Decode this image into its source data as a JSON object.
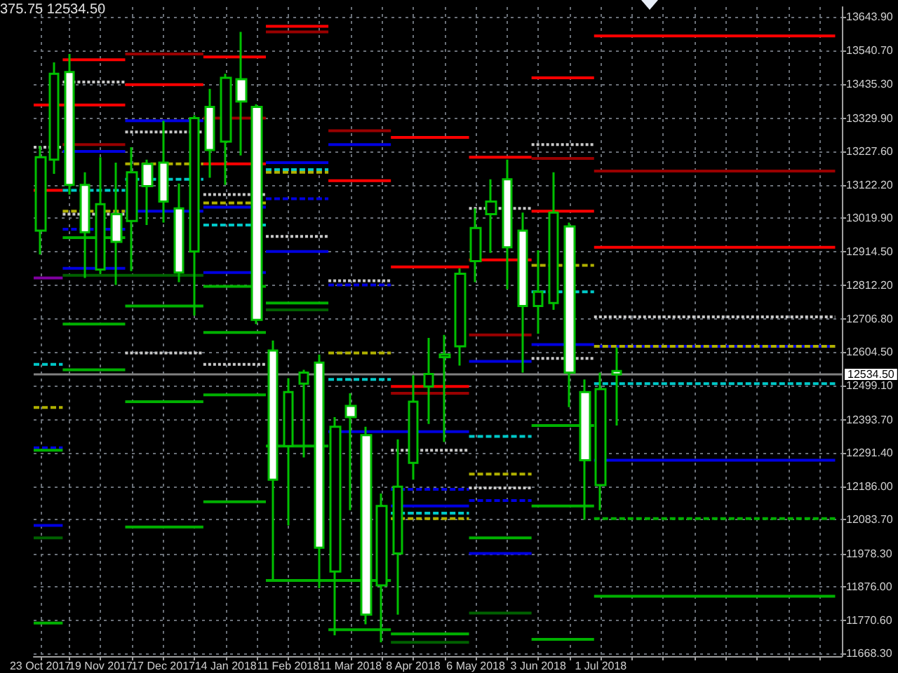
{
  "chart_data": {
    "type": "candlestick",
    "color": "#00c000",
    "grid": true,
    "marker": "none",
    "annotations": [
      "375.75 12534.50"
    ],
    "xlim": [
      "2017-10-20",
      "2018-10-17"
    ],
    "xticks": [
      {
        "value": "2017-10-23",
        "label": "23 Oct 2017"
      },
      {
        "value": "2017-11-05",
        "label": null
      },
      {
        "value": "2017-11-19",
        "label": "19 Nov 2017"
      },
      {
        "value": "2017-12-03",
        "label": null
      },
      {
        "value": "2017-12-17",
        "label": "17 Dec 2017"
      },
      {
        "value": "2017-12-31",
        "label": null
      },
      {
        "value": "2018-01-14",
        "label": "14 Jan 2018"
      },
      {
        "value": "2018-01-28",
        "label": null
      },
      {
        "value": "2018-02-11",
        "label": "11 Feb 2018"
      },
      {
        "value": "2018-02-25",
        "label": null
      },
      {
        "value": "2018-03-11",
        "label": "11 Mar 2018"
      },
      {
        "value": "2018-03-25",
        "label": null
      },
      {
        "value": "2018-04-08",
        "label": "8 Apr 2018"
      },
      {
        "value": "2018-04-22",
        "label": null
      },
      {
        "value": "2018-05-06",
        "label": "6 May 2018"
      },
      {
        "value": "2018-05-20",
        "label": null
      },
      {
        "value": "2018-06-03",
        "label": "3 Jun 2018"
      },
      {
        "value": "2018-06-17",
        "label": null
      },
      {
        "value": "2018-07-01",
        "label": "1 Jul 2018"
      },
      {
        "value": "2018-07-15",
        "label": null
      },
      {
        "value": "2018-07-29",
        "label": null
      },
      {
        "value": "2018-08-12",
        "label": null
      },
      {
        "value": "2018-08-26",
        "label": null
      },
      {
        "value": "2018-09-09",
        "label": null
      },
      {
        "value": "2018-09-23",
        "label": null
      },
      {
        "value": "2018-10-07",
        "label": null
      }
    ],
    "ylim": [
      11660,
      13675
    ],
    "yticks": [
      {
        "value": 13643.9,
        "label": "13643.90"
      },
      {
        "value": 13540.7,
        "label": "13540.70"
      },
      {
        "value": 13435.3,
        "label": "13435.30"
      },
      {
        "value": 13329.9,
        "label": "13329.90"
      },
      {
        "value": 13227.6,
        "label": "13227.60"
      },
      {
        "value": 13122.2,
        "label": "13122.20"
      },
      {
        "value": 13019.9,
        "label": "13019.90"
      },
      {
        "value": 12914.5,
        "label": "12914.50"
      },
      {
        "value": 12812.2,
        "label": "12812.20"
      },
      {
        "value": 12706.8,
        "label": "12706.80"
      },
      {
        "value": 12604.5,
        "label": "12604.50"
      },
      {
        "value": 12499.1,
        "label": "12499.10"
      },
      {
        "value": 12393.7,
        "label": "12393.70"
      },
      {
        "value": 12291.4,
        "label": "12291.40"
      },
      {
        "value": 12186,
        "label": "12186.00"
      },
      {
        "value": 12083.7,
        "label": "12083.70"
      },
      {
        "value": 11978.3,
        "label": "11978.30"
      },
      {
        "value": 11876,
        "label": "11876.00"
      },
      {
        "value": 11770.6,
        "label": "11770.60"
      },
      {
        "value": 11668.3,
        "label": "11668.30"
      }
    ],
    "ref_lines": [
      {
        "axis": "y",
        "value": 12534.5,
        "label": "12534.50",
        "color": "#808080"
      }
    ],
    "x": [
      "2017-10-23",
      "2017-10-29",
      "2017-11-05",
      "2017-11-12",
      "2017-11-19",
      "2017-11-26",
      "2017-12-03",
      "2017-12-10",
      "2017-12-17",
      "2017-12-24",
      "2017-12-31",
      "2018-01-07",
      "2018-01-14",
      "2018-01-21",
      "2018-01-28",
      "2018-02-04",
      "2018-02-11",
      "2018-02-18",
      "2018-02-25",
      "2018-03-04",
      "2018-03-11",
      "2018-03-18",
      "2018-03-25",
      "2018-04-01",
      "2018-04-08",
      "2018-04-15",
      "2018-04-22",
      "2018-04-29",
      "2018-05-06",
      "2018-05-13",
      "2018-05-20",
      "2018-05-27",
      "2018-06-03",
      "2018-06-10",
      "2018-06-17",
      "2018-06-24",
      "2018-07-01",
      "2018-07-08"
    ],
    "ohlc": [
      [
        12981,
        13244,
        12907,
        13209
      ],
      [
        13201,
        13503,
        13157,
        13468
      ],
      [
        13473,
        13529,
        13093,
        13123
      ],
      [
        13123,
        13162,
        12834,
        12976
      ],
      [
        12860,
        13209,
        12847,
        13063
      ],
      [
        13032,
        13192,
        12812,
        12946
      ],
      [
        13011,
        13240,
        12855,
        13162
      ],
      [
        13188,
        13201,
        12998,
        13119
      ],
      [
        13192,
        13322,
        13006,
        13071
      ],
      [
        13050,
        13127,
        12821,
        12851
      ],
      [
        12916,
        13339,
        12717,
        13330
      ],
      [
        13365,
        13421,
        13145,
        13231
      ],
      [
        13257,
        13468,
        13123,
        13455
      ],
      [
        13451,
        13598,
        13214,
        13382
      ],
      [
        13365,
        13373,
        12691,
        12704
      ],
      [
        12609,
        12640,
        11897,
        12208
      ],
      [
        12312,
        12523,
        12066,
        12480
      ],
      [
        12506,
        12549,
        12277,
        12540
      ],
      [
        12571,
        12596,
        11871,
        11997
      ],
      [
        11923,
        12402,
        11725,
        12372
      ],
      [
        12437,
        12476,
        12113,
        12402
      ],
      [
        12346,
        12372,
        11759,
        11789
      ],
      [
        11880,
        12165,
        11703,
        12126
      ],
      [
        11979,
        12333,
        11789,
        12186
      ],
      [
        12260,
        12532,
        12208,
        12450
      ],
      [
        12497,
        12648,
        12381,
        12536
      ],
      [
        12588,
        12657,
        12325,
        12596
      ],
      [
        12622,
        12864,
        12562,
        12847
      ],
      [
        12886,
        13050,
        12821,
        12989
      ],
      [
        13032,
        13140,
        12912,
        13071
      ],
      [
        13140,
        13201,
        12799,
        12929
      ],
      [
        12981,
        13037,
        12540,
        12747
      ],
      [
        12747,
        12920,
        12661,
        12791
      ],
      [
        12756,
        13162,
        12735,
        13037
      ],
      [
        12994,
        13006,
        12433,
        12540
      ],
      [
        12480,
        12519,
        12083,
        12268
      ],
      [
        12191,
        12540,
        12113,
        12489
      ],
      [
        12545,
        12618,
        12375.75,
        12534.5
      ]
    ],
    "colors": [
      "#000000",
      "#000000",
      "#ffffff",
      "#ffffff",
      "#000000",
      "#ffffff",
      "#000000",
      "#ffffff",
      "#ffffff",
      "#ffffff",
      "#000000",
      "#ffffff",
      "#000000",
      "#ffffff",
      "#ffffff",
      "#ffffff",
      "#000000",
      "#000000",
      "#ffffff",
      "#000000",
      "#ffffff",
      "#ffffff",
      "#000000",
      "#000000",
      "#000000",
      "#000000",
      "#000000",
      "#000000",
      "#000000",
      "#000000",
      "#ffffff",
      "#ffffff",
      "#000000",
      "#000000",
      "#ffffff",
      "#ffffff",
      "#000000",
      "#ffffff"
    ],
    "series": [
      {
        "type": "line",
        "color": "#ff0000",
        "line_style": "solid",
        "x": [
          "2017-10-20",
          "2017-11-30"
        ],
        "values": [
          13371,
          13371
        ]
      },
      {
        "type": "line",
        "color": "#c8c8c8",
        "line_style": "dotted",
        "x": [
          "2017-10-20",
          "2017-11-02"
        ],
        "values": [
          13240,
          13240
        ]
      },
      {
        "type": "line",
        "color": "#ff0000",
        "line_style": "solid",
        "x": [
          "2017-10-20",
          "2017-11-02"
        ],
        "values": [
          13106,
          13106
        ]
      },
      {
        "type": "line",
        "color": "#8000a0",
        "line_style": "solid",
        "x": [
          "2017-10-20",
          "2017-11-02"
        ],
        "values": [
          12834,
          12834
        ]
      },
      {
        "type": "line",
        "color": "#00c8c8",
        "line_style": "dashed",
        "x": [
          "2017-10-20",
          "2017-11-02"
        ],
        "values": [
          12566,
          12566
        ]
      },
      {
        "type": "line",
        "color": "#b0b000",
        "line_style": "dashed",
        "x": [
          "2017-10-20",
          "2017-11-02"
        ],
        "values": [
          12432,
          12432
        ]
      },
      {
        "type": "line",
        "color": "#0000e0",
        "line_style": "dashed",
        "x": [
          "2017-10-20",
          "2017-11-02"
        ],
        "values": [
          12307,
          12307
        ]
      },
      {
        "type": "line",
        "color": "#00b000",
        "line_style": "solid",
        "x": [
          "2017-10-20",
          "2017-11-02"
        ],
        "values": [
          12299,
          12299
        ]
      },
      {
        "type": "line",
        "color": "#0000e0",
        "line_style": "solid",
        "x": [
          "2017-10-20",
          "2017-11-02"
        ],
        "values": [
          12066,
          12066
        ]
      },
      {
        "type": "line",
        "color": "#006000",
        "line_style": "solid",
        "x": [
          "2017-10-20",
          "2017-11-02"
        ],
        "values": [
          12027,
          12027
        ]
      },
      {
        "type": "line",
        "color": "#00b000",
        "line_style": "solid",
        "x": [
          "2017-10-20",
          "2017-11-02"
        ],
        "values": [
          11763,
          11763
        ]
      },
      {
        "type": "line",
        "color": "#ff0000",
        "line_style": "solid",
        "x": [
          "2017-11-02",
          "2017-11-30"
        ],
        "values": [
          13511,
          13511
        ]
      },
      {
        "type": "line",
        "color": "#c8c8c8",
        "line_style": "dotted",
        "x": [
          "2017-11-02",
          "2017-11-30"
        ],
        "values": [
          13442,
          13442
        ]
      },
      {
        "type": "line",
        "color": "#990000",
        "line_style": "solid",
        "x": [
          "2017-11-02",
          "2017-11-30"
        ],
        "values": [
          13248,
          13248
        ]
      },
      {
        "type": "line",
        "color": "#0000e0",
        "line_style": "solid",
        "x": [
          "2017-11-02",
          "2017-11-30"
        ],
        "values": [
          13227,
          13227
        ]
      },
      {
        "type": "line",
        "color": "#00c8c8",
        "line_style": "dashed",
        "x": [
          "2017-11-02",
          "2017-11-30"
        ],
        "values": [
          13106,
          13106
        ]
      },
      {
        "type": "line",
        "color": "#b0b000",
        "line_style": "dashed",
        "x": [
          "2017-11-02",
          "2017-11-30"
        ],
        "values": [
          13041,
          13041
        ]
      },
      {
        "type": "line",
        "color": "#c8c8c8",
        "line_style": "dotted",
        "x": [
          "2017-11-02",
          "2017-11-30"
        ],
        "values": [
          13032,
          13032
        ]
      },
      {
        "type": "line",
        "color": "#0000e0",
        "line_style": "dashed",
        "x": [
          "2017-11-02",
          "2017-11-30"
        ],
        "values": [
          12985,
          12985
        ]
      },
      {
        "type": "line",
        "color": "#00b000",
        "line_style": "solid",
        "x": [
          "2017-11-02",
          "2017-11-30"
        ],
        "values": [
          12959,
          12959
        ]
      },
      {
        "type": "line",
        "color": "#0000e0",
        "line_style": "solid",
        "x": [
          "2017-11-02",
          "2017-11-30"
        ],
        "values": [
          12864,
          12864
        ]
      },
      {
        "type": "line",
        "color": "#006000",
        "line_style": "solid",
        "x": [
          "2017-11-02",
          "2018-01-04"
        ],
        "values": [
          12842,
          12842
        ]
      },
      {
        "type": "line",
        "color": "#00b000",
        "line_style": "solid",
        "x": [
          "2017-11-02",
          "2017-11-30"
        ],
        "values": [
          12691,
          12691
        ]
      },
      {
        "type": "line",
        "color": "#00b000",
        "line_style": "solid",
        "x": [
          "2017-11-02",
          "2017-11-30"
        ],
        "values": [
          12549,
          12549
        ]
      },
      {
        "type": "line",
        "color": "#990000",
        "line_style": "solid",
        "x": [
          "2017-11-30",
          "2018-01-04"
        ],
        "values": [
          13529,
          13529
        ]
      },
      {
        "type": "line",
        "color": "#ff0000",
        "line_style": "solid",
        "x": [
          "2017-11-30",
          "2018-01-04"
        ],
        "values": [
          13434,
          13434
        ]
      },
      {
        "type": "line",
        "color": "#0000e0",
        "line_style": "solid",
        "x": [
          "2017-11-30",
          "2018-01-04"
        ],
        "values": [
          13322,
          13322
        ]
      },
      {
        "type": "line",
        "color": "#c8c8c8",
        "line_style": "dotted",
        "x": [
          "2017-11-30",
          "2018-01-04"
        ],
        "values": [
          13287,
          13287
        ]
      },
      {
        "type": "line",
        "color": "#b0b000",
        "line_style": "dashed",
        "x": [
          "2017-11-30",
          "2018-01-04"
        ],
        "values": [
          13188,
          13188
        ]
      },
      {
        "type": "line",
        "color": "#00c8c8",
        "line_style": "dashed",
        "x": [
          "2017-11-30",
          "2018-01-04"
        ],
        "values": [
          13140,
          13140
        ]
      },
      {
        "type": "line",
        "color": "#0000e0",
        "line_style": "solid",
        "x": [
          "2017-11-30",
          "2018-01-04"
        ],
        "values": [
          13041,
          13041
        ]
      },
      {
        "type": "line",
        "color": "#00b000",
        "line_style": "solid",
        "x": [
          "2017-11-30",
          "2018-01-04"
        ],
        "values": [
          12747,
          12747
        ]
      },
      {
        "type": "line",
        "color": "#c8c8c8",
        "line_style": "dotted",
        "x": [
          "2017-11-30",
          "2018-01-04"
        ],
        "values": [
          12601,
          12601
        ]
      },
      {
        "type": "line",
        "color": "#00b000",
        "line_style": "solid",
        "x": [
          "2017-11-30",
          "2018-01-04"
        ],
        "values": [
          12450,
          12450
        ]
      },
      {
        "type": "line",
        "color": "#00b000",
        "line_style": "solid",
        "x": [
          "2017-11-30",
          "2018-01-04"
        ],
        "values": [
          12061,
          12061
        ]
      },
      {
        "type": "line",
        "color": "#ff0000",
        "line_style": "solid",
        "x": [
          "2018-01-04",
          "2018-02-01"
        ],
        "values": [
          13520,
          13520
        ]
      },
      {
        "type": "line",
        "color": "#990000",
        "line_style": "solid",
        "x": [
          "2018-01-04",
          "2018-02-01"
        ],
        "values": [
          13330,
          13330
        ]
      },
      {
        "type": "line",
        "color": "#ff0000",
        "line_style": "solid",
        "x": [
          "2018-01-04",
          "2018-02-01"
        ],
        "values": [
          13188,
          13188
        ]
      },
      {
        "type": "line",
        "color": "#c8c8c8",
        "line_style": "dotted",
        "x": [
          "2018-01-04",
          "2018-02-01"
        ],
        "values": [
          13093,
          13093
        ]
      },
      {
        "type": "line",
        "color": "#b0b000",
        "line_style": "dashed",
        "x": [
          "2018-01-04",
          "2018-02-01"
        ],
        "values": [
          13067,
          13067
        ]
      },
      {
        "type": "line",
        "color": "#0000e0",
        "line_style": "solid",
        "x": [
          "2018-01-04",
          "2018-02-01"
        ],
        "values": [
          13054,
          13054
        ]
      },
      {
        "type": "line",
        "color": "#00c8c8",
        "line_style": "dashed",
        "x": [
          "2018-01-04",
          "2018-02-01"
        ],
        "values": [
          12998,
          12998
        ]
      },
      {
        "type": "line",
        "color": "#0000e0",
        "line_style": "solid",
        "x": [
          "2018-01-04",
          "2018-02-01"
        ],
        "values": [
          12851,
          12851
        ]
      },
      {
        "type": "line",
        "color": "#00b000",
        "line_style": "solid",
        "x": [
          "2018-01-04",
          "2018-02-01"
        ],
        "values": [
          12808,
          12808
        ]
      },
      {
        "type": "line",
        "color": "#00b000",
        "line_style": "solid",
        "x": [
          "2018-01-04",
          "2018-02-01"
        ],
        "values": [
          12665,
          12665
        ]
      },
      {
        "type": "line",
        "color": "#c8c8c8",
        "line_style": "dotted",
        "x": [
          "2018-01-04",
          "2018-02-01"
        ],
        "values": [
          12566,
          12566
        ]
      },
      {
        "type": "line",
        "color": "#00b000",
        "line_style": "solid",
        "x": [
          "2018-01-04",
          "2018-02-01"
        ],
        "values": [
          12471,
          12471
        ]
      },
      {
        "type": "line",
        "color": "#00b000",
        "line_style": "solid",
        "x": [
          "2018-01-04",
          "2018-02-01"
        ],
        "values": [
          12139,
          12139
        ]
      },
      {
        "type": "line",
        "color": "#ff0000",
        "line_style": "solid",
        "x": [
          "2018-02-01",
          "2018-03-01"
        ],
        "values": [
          13615,
          13615
        ]
      },
      {
        "type": "line",
        "color": "#990000",
        "line_style": "solid",
        "x": [
          "2018-02-01",
          "2018-03-01"
        ],
        "values": [
          13598,
          13598
        ]
      },
      {
        "type": "line",
        "color": "#0000e0",
        "line_style": "solid",
        "x": [
          "2018-02-01",
          "2018-03-01"
        ],
        "values": [
          13192,
          13192
        ]
      },
      {
        "type": "line",
        "color": "#00c8c8",
        "line_style": "dashed",
        "x": [
          "2018-02-01",
          "2018-03-01"
        ],
        "values": [
          13170,
          13170
        ]
      },
      {
        "type": "line",
        "color": "#b0b000",
        "line_style": "dashed",
        "x": [
          "2018-02-01",
          "2018-03-01"
        ],
        "values": [
          13162,
          13162
        ]
      },
      {
        "type": "line",
        "color": "#0000e0",
        "line_style": "dashed",
        "x": [
          "2018-02-01",
          "2018-03-01"
        ],
        "values": [
          13080,
          13080
        ]
      },
      {
        "type": "line",
        "color": "#c8c8c8",
        "line_style": "dotted",
        "x": [
          "2018-02-01",
          "2018-03-01"
        ],
        "values": [
          12963,
          12963
        ]
      },
      {
        "type": "line",
        "color": "#0000e0",
        "line_style": "solid",
        "x": [
          "2018-02-01",
          "2018-03-01"
        ],
        "values": [
          12916,
          12916
        ]
      },
      {
        "type": "line",
        "color": "#00b000",
        "line_style": "solid",
        "x": [
          "2018-02-01",
          "2018-03-01"
        ],
        "values": [
          12756,
          12756
        ]
      },
      {
        "type": "line",
        "color": "#006000",
        "line_style": "solid",
        "x": [
          "2018-02-01",
          "2018-03-01"
        ],
        "values": [
          12735,
          12735
        ]
      },
      {
        "type": "line",
        "color": "#00b000",
        "line_style": "solid",
        "x": [
          "2018-02-01",
          "2018-03-01"
        ],
        "values": [
          12312,
          12312
        ]
      },
      {
        "type": "line",
        "color": "#00b000",
        "line_style": "solid",
        "x": [
          "2018-02-01",
          "2018-03-29"
        ],
        "values": [
          11895,
          11895
        ]
      },
      {
        "type": "line",
        "color": "#990000",
        "line_style": "solid",
        "x": [
          "2018-03-01",
          "2018-03-29"
        ],
        "values": [
          13291,
          13291
        ]
      },
      {
        "type": "line",
        "color": "#0000e0",
        "line_style": "solid",
        "x": [
          "2018-03-01",
          "2018-03-29"
        ],
        "values": [
          13248,
          13248
        ]
      },
      {
        "type": "line",
        "color": "#ff0000",
        "line_style": "solid",
        "x": [
          "2018-03-01",
          "2018-03-29"
        ],
        "values": [
          13136,
          13136
        ]
      },
      {
        "type": "line",
        "color": "#c8c8c8",
        "line_style": "dotted",
        "x": [
          "2018-03-01",
          "2018-03-29"
        ],
        "values": [
          12825,
          12825
        ]
      },
      {
        "type": "line",
        "color": "#0000e0",
        "line_style": "dashed",
        "x": [
          "2018-03-01",
          "2018-03-29"
        ],
        "values": [
          12812,
          12812
        ]
      },
      {
        "type": "line",
        "color": "#b0b000",
        "line_style": "dashed",
        "x": [
          "2018-03-01",
          "2018-03-29"
        ],
        "values": [
          12601,
          12601
        ]
      },
      {
        "type": "line",
        "color": "#00c8c8",
        "line_style": "dashed",
        "x": [
          "2018-03-01",
          "2018-03-29"
        ],
        "values": [
          12519,
          12519
        ]
      },
      {
        "type": "line",
        "color": "#0000e0",
        "line_style": "solid",
        "x": [
          "2018-03-01",
          "2018-05-03"
        ],
        "values": [
          12357,
          12357
        ]
      },
      {
        "type": "line",
        "color": "#00b000",
        "line_style": "solid",
        "x": [
          "2018-03-01",
          "2018-03-29"
        ],
        "values": [
          11742,
          11742
        ]
      },
      {
        "type": "line",
        "color": "#ff0000",
        "line_style": "solid",
        "x": [
          "2018-03-29",
          "2018-05-03"
        ],
        "values": [
          13270,
          13270
        ]
      },
      {
        "type": "line",
        "color": "#ff0000",
        "line_style": "solid",
        "x": [
          "2018-03-29",
          "2018-05-03"
        ],
        "values": [
          12868,
          12868
        ]
      },
      {
        "type": "line",
        "color": "#ff0000",
        "line_style": "solid",
        "x": [
          "2018-03-29",
          "2018-05-03"
        ],
        "values": [
          12497,
          12497
        ]
      },
      {
        "type": "line",
        "color": "#990000",
        "line_style": "solid",
        "x": [
          "2018-03-29",
          "2018-05-03"
        ],
        "values": [
          12476,
          12476
        ]
      },
      {
        "type": "line",
        "color": "#c8c8c8",
        "line_style": "dotted",
        "x": [
          "2018-03-29",
          "2018-05-03"
        ],
        "values": [
          12299,
          12299
        ]
      },
      {
        "type": "line",
        "color": "#0000e0",
        "line_style": "dashed",
        "x": [
          "2018-03-29",
          "2018-05-03"
        ],
        "values": [
          12178,
          12178
        ]
      },
      {
        "type": "line",
        "color": "#0000e0",
        "line_style": "solid",
        "x": [
          "2018-03-29",
          "2018-05-03"
        ],
        "values": [
          12126,
          12126
        ]
      },
      {
        "type": "line",
        "color": "#00c8c8",
        "line_style": "dashed",
        "x": [
          "2018-03-29",
          "2018-05-03"
        ],
        "values": [
          12104,
          12104
        ]
      },
      {
        "type": "line",
        "color": "#b0b000",
        "line_style": "dashed",
        "x": [
          "2018-03-29",
          "2018-05-03"
        ],
        "values": [
          12087,
          12087
        ]
      },
      {
        "type": "line",
        "color": "#00b000",
        "line_style": "solid",
        "x": [
          "2018-03-29",
          "2018-05-03"
        ],
        "values": [
          11729,
          11729
        ]
      },
      {
        "type": "line",
        "color": "#006000",
        "line_style": "solid",
        "x": [
          "2018-03-29",
          "2018-05-03"
        ],
        "values": [
          11703,
          11703
        ]
      },
      {
        "type": "line",
        "color": "#ff0000",
        "line_style": "solid",
        "x": [
          "2018-05-03",
          "2018-05-31"
        ],
        "values": [
          13209,
          13209
        ]
      },
      {
        "type": "line",
        "color": "#c8c8c8",
        "line_style": "dotted",
        "x": [
          "2018-05-03",
          "2018-05-31"
        ],
        "values": [
          13050,
          13050
        ]
      },
      {
        "type": "line",
        "color": "#ff0000",
        "line_style": "solid",
        "x": [
          "2018-05-03",
          "2018-05-31"
        ],
        "values": [
          12890,
          12890
        ]
      },
      {
        "type": "line",
        "color": "#990000",
        "line_style": "solid",
        "x": [
          "2018-05-03",
          "2018-05-31"
        ],
        "values": [
          12657,
          12657
        ]
      },
      {
        "type": "line",
        "color": "#0000e0",
        "line_style": "solid",
        "x": [
          "2018-05-03",
          "2018-05-31"
        ],
        "values": [
          12575,
          12575
        ]
      },
      {
        "type": "line",
        "color": "#00c8c8",
        "line_style": "dashed",
        "x": [
          "2018-05-03",
          "2018-05-31"
        ],
        "values": [
          12342,
          12342
        ]
      },
      {
        "type": "line",
        "color": "#b0b000",
        "line_style": "dashed",
        "x": [
          "2018-05-03",
          "2018-05-31"
        ],
        "values": [
          12225,
          12225
        ]
      },
      {
        "type": "line",
        "color": "#c8c8c8",
        "line_style": "dotted",
        "x": [
          "2018-05-03",
          "2018-05-31"
        ],
        "values": [
          12182,
          12182
        ]
      },
      {
        "type": "line",
        "color": "#0000e0",
        "line_style": "dashed",
        "x": [
          "2018-05-03",
          "2018-05-31"
        ],
        "values": [
          12143,
          12143
        ]
      },
      {
        "type": "line",
        "color": "#00b000",
        "line_style": "solid",
        "x": [
          "2018-05-03",
          "2018-05-31"
        ],
        "values": [
          12027,
          12027
        ]
      },
      {
        "type": "line",
        "color": "#0000e0",
        "line_style": "solid",
        "x": [
          "2018-05-03",
          "2018-05-31"
        ],
        "values": [
          11979,
          11979
        ]
      },
      {
        "type": "line",
        "color": "#006000",
        "line_style": "solid",
        "x": [
          "2018-05-03",
          "2018-05-31"
        ],
        "values": [
          11794,
          11794
        ]
      },
      {
        "type": "line",
        "color": "#ff0000",
        "line_style": "solid",
        "x": [
          "2018-05-31",
          "2018-06-28"
        ],
        "values": [
          13455,
          13455
        ]
      },
      {
        "type": "line",
        "color": "#c8c8c8",
        "line_style": "dotted",
        "x": [
          "2018-05-31",
          "2018-06-28"
        ],
        "values": [
          13248,
          13248
        ]
      },
      {
        "type": "line",
        "color": "#990000",
        "line_style": "solid",
        "x": [
          "2018-05-31",
          "2018-06-28"
        ],
        "values": [
          13205,
          13205
        ]
      },
      {
        "type": "line",
        "color": "#ff0000",
        "line_style": "solid",
        "x": [
          "2018-05-31",
          "2018-06-28"
        ],
        "values": [
          13041,
          13041
        ]
      },
      {
        "type": "line",
        "color": "#b0b000",
        "line_style": "dashed",
        "x": [
          "2018-05-31",
          "2018-06-28"
        ],
        "values": [
          12873,
          12873
        ]
      },
      {
        "type": "line",
        "color": "#00c8c8",
        "line_style": "dashed",
        "x": [
          "2018-05-31",
          "2018-06-28"
        ],
        "values": [
          12791,
          12791
        ]
      },
      {
        "type": "line",
        "color": "#0000e0",
        "line_style": "solid",
        "x": [
          "2018-05-31",
          "2018-06-28"
        ],
        "values": [
          12627,
          12627
        ]
      },
      {
        "type": "line",
        "color": "#c8c8c8",
        "line_style": "dotted",
        "x": [
          "2018-05-31",
          "2018-06-28"
        ],
        "values": [
          12584,
          12584
        ]
      },
      {
        "type": "line",
        "color": "#00b000",
        "line_style": "solid",
        "x": [
          "2018-05-31",
          "2018-06-28"
        ],
        "values": [
          12376,
          12376
        ]
      },
      {
        "type": "line",
        "color": "#00b000",
        "line_style": "solid",
        "x": [
          "2018-05-31",
          "2018-06-28"
        ],
        "values": [
          12126,
          12126
        ]
      },
      {
        "type": "line",
        "color": "#00b000",
        "line_style": "solid",
        "x": [
          "2018-05-31",
          "2018-06-28"
        ],
        "values": [
          11712,
          11712
        ]
      },
      {
        "type": "line",
        "color": "#ff0000",
        "line_style": "solid",
        "x": [
          "2018-06-28",
          "2018-10-14"
        ],
        "values": [
          13585,
          13585
        ]
      },
      {
        "type": "line",
        "color": "#990000",
        "line_style": "solid",
        "x": [
          "2018-06-28",
          "2018-10-14"
        ],
        "values": [
          13166,
          13166
        ]
      },
      {
        "type": "line",
        "color": "#ff0000",
        "line_style": "solid",
        "x": [
          "2018-06-28",
          "2018-10-14"
        ],
        "values": [
          12929,
          12929
        ]
      },
      {
        "type": "line",
        "color": "#c8c8c8",
        "line_style": "dotted",
        "x": [
          "2018-06-28",
          "2018-10-14"
        ],
        "values": [
          12713,
          12713
        ]
      },
      {
        "type": "line",
        "color": "#0000e0",
        "line_style": "solid",
        "x": [
          "2018-06-28",
          "2018-10-14"
        ],
        "values": [
          12622,
          12622
        ]
      },
      {
        "type": "line",
        "color": "#b0b000",
        "line_style": "dashed",
        "x": [
          "2018-06-28",
          "2018-10-14"
        ],
        "values": [
          12622,
          12622
        ]
      },
      {
        "type": "line",
        "color": "#00c8c8",
        "line_style": "dashed",
        "x": [
          "2018-06-28",
          "2018-10-14"
        ],
        "values": [
          12506,
          12506
        ]
      },
      {
        "type": "line",
        "color": "#0000e0",
        "line_style": "solid",
        "x": [
          "2018-06-28",
          "2018-10-14"
        ],
        "values": [
          12268,
          12268
        ]
      },
      {
        "type": "line",
        "color": "#00b000",
        "line_style": "dashed",
        "x": [
          "2018-06-28",
          "2018-10-14"
        ],
        "values": [
          12087,
          12087
        ]
      },
      {
        "type": "line",
        "color": "#00b000",
        "line_style": "solid",
        "x": [
          "2018-06-28",
          "2018-10-14"
        ],
        "values": [
          11846,
          11846
        ]
      }
    ]
  }
}
